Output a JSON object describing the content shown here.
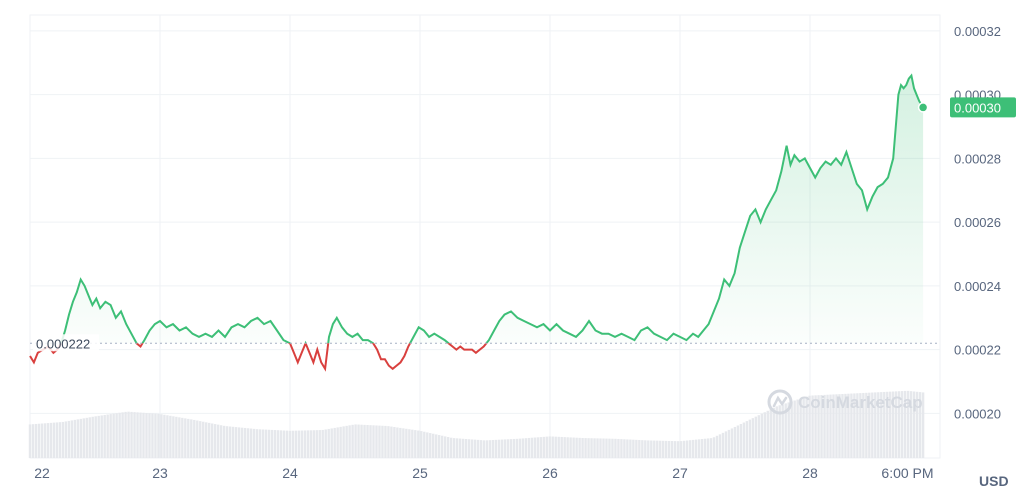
{
  "colors": {
    "up": "#3dbf77",
    "down": "#d9403e",
    "grid": "#eff2f5",
    "axis_text": "#58667e",
    "volume": "#e6e8ec",
    "ref_line": "#a6b0c3"
  },
  "watermark": {
    "text": "CoinMarketCap",
    "icon": "coinmarketcap-logo-icon"
  },
  "chart_data": {
    "type": "line",
    "currency": "USD",
    "ylim": [
      0.000186,
      0.000325
    ],
    "yticks": [
      {
        "value": 0.0002,
        "label": "0.00020"
      },
      {
        "value": 0.00022,
        "label": "0.00022"
      },
      {
        "value": 0.00024,
        "label": "0.00024"
      },
      {
        "value": 0.00026,
        "label": "0.00026"
      },
      {
        "value": 0.00028,
        "label": "0.00028"
      },
      {
        "value": 0.0003,
        "label": "0.00030"
      },
      {
        "value": 0.00032,
        "label": "0.00032"
      }
    ],
    "xlim": [
      0,
      7.0
    ],
    "xticks": [
      {
        "value": 0.0,
        "label": "22"
      },
      {
        "value": 1.0,
        "label": "23"
      },
      {
        "value": 2.0,
        "label": "24"
      },
      {
        "value": 3.0,
        "label": "25"
      },
      {
        "value": 4.0,
        "label": "26"
      },
      {
        "value": 5.0,
        "label": "27"
      },
      {
        "value": 6.0,
        "label": "28"
      },
      {
        "value": 6.75,
        "label": "6:00 PM"
      }
    ],
    "reference": {
      "value": 0.000222,
      "label": "0.000222"
    },
    "current_price": {
      "value": 0.000296,
      "label": "0.00030"
    },
    "grid": true,
    "price": [
      [
        0.0,
        0.000218
      ],
      [
        0.03,
        0.000216
      ],
      [
        0.06,
        0.000219
      ],
      [
        0.1,
        0.00022
      ],
      [
        0.14,
        0.000221
      ],
      [
        0.18,
        0.000219
      ],
      [
        0.21,
        0.00022
      ],
      [
        0.24,
        0.000222
      ],
      [
        0.27,
        0.000226
      ],
      [
        0.3,
        0.000231
      ],
      [
        0.33,
        0.000235
      ],
      [
        0.36,
        0.000238
      ],
      [
        0.39,
        0.000242
      ],
      [
        0.42,
        0.00024
      ],
      [
        0.45,
        0.000237
      ],
      [
        0.48,
        0.000234
      ],
      [
        0.51,
        0.000236
      ],
      [
        0.54,
        0.000233
      ],
      [
        0.58,
        0.000235
      ],
      [
        0.62,
        0.000234
      ],
      [
        0.66,
        0.00023
      ],
      [
        0.7,
        0.000232
      ],
      [
        0.74,
        0.000228
      ],
      [
        0.78,
        0.000225
      ],
      [
        0.82,
        0.000222
      ],
      [
        0.85,
        0.000221
      ],
      [
        0.88,
        0.000223
      ],
      [
        0.92,
        0.000226
      ],
      [
        0.96,
        0.000228
      ],
      [
        1.0,
        0.000229
      ],
      [
        1.05,
        0.000227
      ],
      [
        1.1,
        0.000228
      ],
      [
        1.15,
        0.000226
      ],
      [
        1.2,
        0.000227
      ],
      [
        1.25,
        0.000225
      ],
      [
        1.3,
        0.000224
      ],
      [
        1.35,
        0.000225
      ],
      [
        1.4,
        0.000224
      ],
      [
        1.45,
        0.000226
      ],
      [
        1.5,
        0.000224
      ],
      [
        1.55,
        0.000227
      ],
      [
        1.6,
        0.000228
      ],
      [
        1.65,
        0.000227
      ],
      [
        1.7,
        0.000229
      ],
      [
        1.75,
        0.00023
      ],
      [
        1.8,
        0.000228
      ],
      [
        1.85,
        0.000229
      ],
      [
        1.9,
        0.000226
      ],
      [
        1.95,
        0.000223
      ],
      [
        2.0,
        0.000222
      ],
      [
        2.03,
        0.000219
      ],
      [
        2.06,
        0.000216
      ],
      [
        2.09,
        0.000219
      ],
      [
        2.12,
        0.000222
      ],
      [
        2.15,
        0.000219
      ],
      [
        2.18,
        0.000216
      ],
      [
        2.21,
        0.00022
      ],
      [
        2.24,
        0.000216
      ],
      [
        2.27,
        0.000214
      ],
      [
        2.3,
        0.000224
      ],
      [
        2.33,
        0.000228
      ],
      [
        2.36,
        0.00023
      ],
      [
        2.4,
        0.000227
      ],
      [
        2.44,
        0.000225
      ],
      [
        2.48,
        0.000224
      ],
      [
        2.52,
        0.000225
      ],
      [
        2.56,
        0.000223
      ],
      [
        2.6,
        0.000223
      ],
      [
        2.64,
        0.000222
      ],
      [
        2.67,
        0.00022
      ],
      [
        2.7,
        0.000217
      ],
      [
        2.73,
        0.000217
      ],
      [
        2.76,
        0.000215
      ],
      [
        2.79,
        0.000214
      ],
      [
        2.82,
        0.000215
      ],
      [
        2.85,
        0.000216
      ],
      [
        2.88,
        0.000218
      ],
      [
        2.91,
        0.000221
      ],
      [
        2.95,
        0.000224
      ],
      [
        2.99,
        0.000227
      ],
      [
        3.03,
        0.000226
      ],
      [
        3.07,
        0.000224
      ],
      [
        3.11,
        0.000225
      ],
      [
        3.15,
        0.000224
      ],
      [
        3.19,
        0.000223
      ],
      [
        3.22,
        0.000222
      ],
      [
        3.25,
        0.000221
      ],
      [
        3.28,
        0.00022
      ],
      [
        3.31,
        0.000221
      ],
      [
        3.34,
        0.00022
      ],
      [
        3.37,
        0.00022
      ],
      [
        3.4,
        0.00022
      ],
      [
        3.43,
        0.000219
      ],
      [
        3.46,
        0.00022
      ],
      [
        3.49,
        0.000221
      ],
      [
        3.53,
        0.000223
      ],
      [
        3.57,
        0.000226
      ],
      [
        3.61,
        0.000229
      ],
      [
        3.65,
        0.000231
      ],
      [
        3.7,
        0.000232
      ],
      [
        3.75,
        0.00023
      ],
      [
        3.8,
        0.000229
      ],
      [
        3.85,
        0.000228
      ],
      [
        3.9,
        0.000227
      ],
      [
        3.95,
        0.000228
      ],
      [
        4.0,
        0.000226
      ],
      [
        4.05,
        0.000228
      ],
      [
        4.1,
        0.000226
      ],
      [
        4.15,
        0.000225
      ],
      [
        4.2,
        0.000224
      ],
      [
        4.25,
        0.000226
      ],
      [
        4.3,
        0.000229
      ],
      [
        4.35,
        0.000226
      ],
      [
        4.4,
        0.000225
      ],
      [
        4.45,
        0.000225
      ],
      [
        4.5,
        0.000224
      ],
      [
        4.55,
        0.000225
      ],
      [
        4.6,
        0.000224
      ],
      [
        4.65,
        0.000223
      ],
      [
        4.7,
        0.000226
      ],
      [
        4.75,
        0.000227
      ],
      [
        4.8,
        0.000225
      ],
      [
        4.85,
        0.000224
      ],
      [
        4.9,
        0.000223
      ],
      [
        4.95,
        0.000225
      ],
      [
        5.0,
        0.000224
      ],
      [
        5.05,
        0.000223
      ],
      [
        5.1,
        0.000225
      ],
      [
        5.14,
        0.000224
      ],
      [
        5.18,
        0.000226
      ],
      [
        5.22,
        0.000228
      ],
      [
        5.26,
        0.000232
      ],
      [
        5.3,
        0.000236
      ],
      [
        5.34,
        0.000242
      ],
      [
        5.38,
        0.00024
      ],
      [
        5.42,
        0.000244
      ],
      [
        5.46,
        0.000252
      ],
      [
        5.5,
        0.000257
      ],
      [
        5.54,
        0.000262
      ],
      [
        5.58,
        0.000264
      ],
      [
        5.62,
        0.00026
      ],
      [
        5.66,
        0.000264
      ],
      [
        5.7,
        0.000267
      ],
      [
        5.74,
        0.00027
      ],
      [
        5.78,
        0.000276
      ],
      [
        5.82,
        0.000284
      ],
      [
        5.85,
        0.000278
      ],
      [
        5.88,
        0.000281
      ],
      [
        5.92,
        0.000279
      ],
      [
        5.96,
        0.00028
      ],
      [
        6.0,
        0.000277
      ],
      [
        6.04,
        0.000274
      ],
      [
        6.08,
        0.000277
      ],
      [
        6.12,
        0.000279
      ],
      [
        6.16,
        0.000278
      ],
      [
        6.2,
        0.00028
      ],
      [
        6.24,
        0.000278
      ],
      [
        6.28,
        0.000282
      ],
      [
        6.32,
        0.000277
      ],
      [
        6.36,
        0.000272
      ],
      [
        6.4,
        0.00027
      ],
      [
        6.44,
        0.000264
      ],
      [
        6.48,
        0.000268
      ],
      [
        6.52,
        0.000271
      ],
      [
        6.56,
        0.000272
      ],
      [
        6.6,
        0.000274
      ],
      [
        6.64,
        0.00028
      ],
      [
        6.66,
        0.00029
      ],
      [
        6.68,
        0.0003
      ],
      [
        6.7,
        0.000303
      ],
      [
        6.72,
        0.000302
      ],
      [
        6.74,
        0.000303
      ],
      [
        6.76,
        0.000305
      ],
      [
        6.78,
        0.000306
      ],
      [
        6.8,
        0.000302
      ],
      [
        6.82,
        0.0003
      ],
      [
        6.84,
        0.000298
      ],
      [
        6.87,
        0.000296
      ]
    ],
    "volume": [
      [
        0.0,
        0.42
      ],
      [
        0.25,
        0.45
      ],
      [
        0.5,
        0.52
      ],
      [
        0.75,
        0.58
      ],
      [
        1.0,
        0.55
      ],
      [
        1.25,
        0.48
      ],
      [
        1.5,
        0.4
      ],
      [
        1.75,
        0.36
      ],
      [
        2.0,
        0.34
      ],
      [
        2.25,
        0.35
      ],
      [
        2.5,
        0.42
      ],
      [
        2.75,
        0.4
      ],
      [
        3.0,
        0.34
      ],
      [
        3.25,
        0.25
      ],
      [
        3.5,
        0.22
      ],
      [
        3.75,
        0.24
      ],
      [
        4.0,
        0.27
      ],
      [
        4.25,
        0.25
      ],
      [
        4.5,
        0.24
      ],
      [
        4.75,
        0.22
      ],
      [
        5.0,
        0.21
      ],
      [
        5.25,
        0.25
      ],
      [
        5.5,
        0.45
      ],
      [
        5.75,
        0.65
      ],
      [
        6.0,
        0.78
      ],
      [
        6.25,
        0.8
      ],
      [
        6.5,
        0.82
      ],
      [
        6.75,
        0.84
      ],
      [
        6.87,
        0.82
      ]
    ]
  }
}
